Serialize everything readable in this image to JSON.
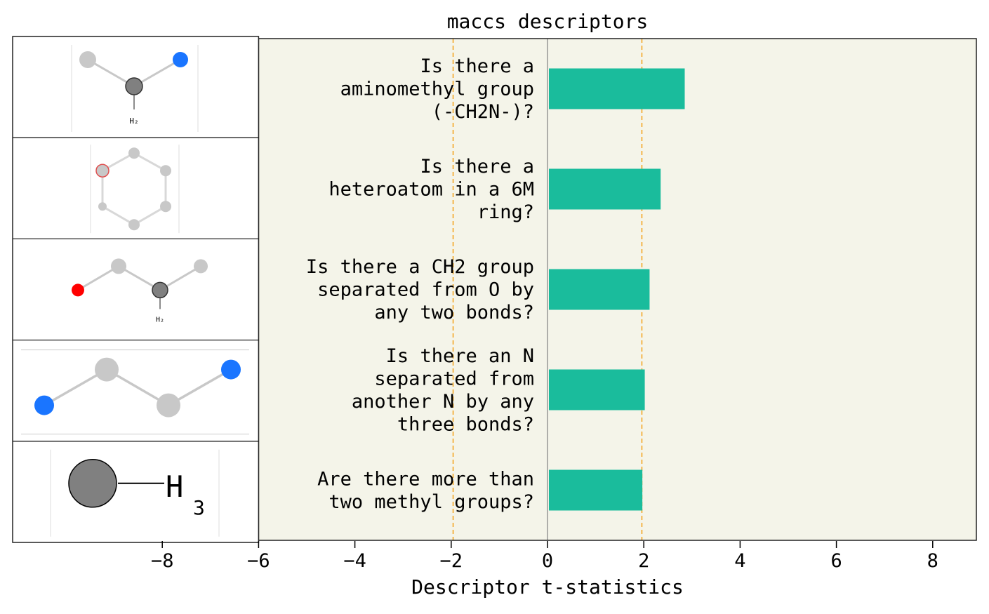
{
  "chart_data": {
    "type": "bar",
    "orientation": "horizontal",
    "title": "maccs descriptors",
    "xlabel": "Descriptor t-statistics",
    "ylabel": "",
    "xlim": [
      -9.1,
      8.9
    ],
    "plot_xlim": [
      -6,
      8.9
    ],
    "x_ticks": [
      -8,
      -6,
      -4,
      -2,
      0,
      2,
      4,
      6,
      8
    ],
    "x_tick_labels": [
      "−8",
      "−6",
      "−4",
      "−2",
      "0",
      "2",
      "4",
      "6",
      "8"
    ],
    "categories": [
      "Is there a aminomethyl group (-CH2N-)?",
      "Is there a heteroatom in a 6M ring?",
      "Is there a CH2 group separated from O by any two bonds?",
      "Is there an N separated from another N by any three bonds?",
      "Are there more than two methyl groups?"
    ],
    "category_lines": [
      [
        "Is there a",
        "aminomethyl group",
        "(-CH2N-)?"
      ],
      [
        "Is there a",
        "heteroatom in a 6M",
        "ring?"
      ],
      [
        "Is there a CH2 group",
        "separated from O by",
        "any two bonds?"
      ],
      [
        "Is there an N",
        "separated from",
        "another N by any",
        "three bonds?"
      ],
      [
        "Are there more than",
        "two methyl groups?"
      ]
    ],
    "values": [
      2.85,
      2.35,
      2.12,
      2.02,
      1.97
    ],
    "significance_lines": [
      -1.96,
      1.96
    ],
    "grid": false,
    "legend": "none",
    "colors": {
      "bar": "#1abc9c",
      "plot_background": "#f4f4e9",
      "threshold_line": "#f5a623",
      "zero_line": "#808080"
    },
    "molecule_thumbnails": [
      {
        "substructure": "aminomethyl",
        "caption": "H₂"
      },
      {
        "substructure": "6-membered heteroatom ring",
        "caption": ""
      },
      {
        "substructure": "CH2 two bonds from O",
        "caption": "H₂"
      },
      {
        "substructure": "N three bonds from N",
        "caption": ""
      },
      {
        "substructure": "methyl",
        "caption": "H",
        "caption_sub": "3"
      }
    ]
  }
}
